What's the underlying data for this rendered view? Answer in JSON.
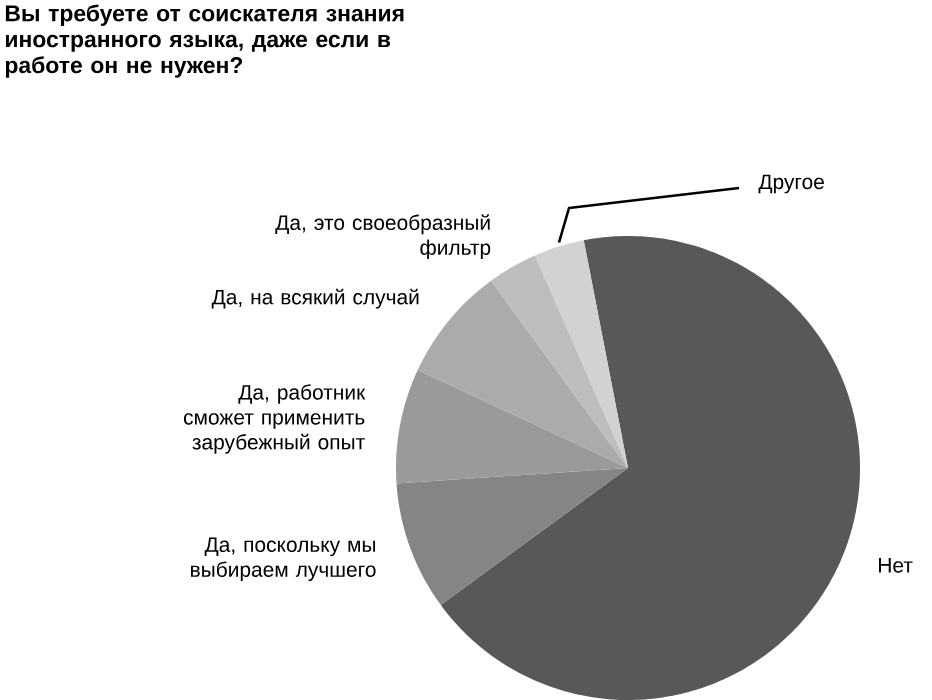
{
  "chart_data": {
    "type": "pie",
    "title": "Вы требуете от соискателя знания иностранного языка, даже если в работе он не нужен?",
    "categories": [
      "Нет",
      "Да, поскольку мы выбираем лучшего",
      "Да, работник сможет применить зарубежный опыт",
      "Да, на всякий случай",
      "Да, это своеобразный фильтр",
      "Другое"
    ],
    "values": [
      68,
      9,
      8,
      8,
      3.5,
      3.5
    ],
    "colors": [
      "#58585a",
      "#858587",
      "#9a9a9c",
      "#ababad",
      "#bdbdbf",
      "#d2d2d4"
    ]
  }
}
